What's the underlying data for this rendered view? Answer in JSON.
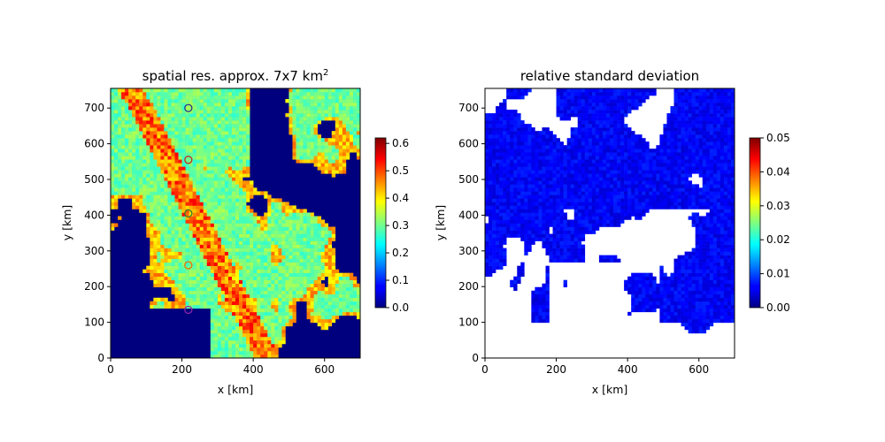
{
  "chart_data": [
    {
      "type": "heatmap",
      "title": "spatial res. approx. 7x7 km",
      "title_superscript": "2",
      "xlabel": "x [km]",
      "ylabel": "y [km]",
      "xlim": [
        0,
        700
      ],
      "ylim": [
        0,
        755
      ],
      "xticks": [
        "0",
        "200",
        "400",
        "600"
      ],
      "yticks": [
        "0",
        "100",
        "200",
        "300",
        "400",
        "500",
        "600",
        "700"
      ],
      "colorbar": {
        "colormap": "jet",
        "range": [
          0.0,
          0.62
        ],
        "ticks": [
          "0.0",
          "0.1",
          "0.2",
          "0.3",
          "0.4",
          "0.5",
          "0.6"
        ]
      },
      "markers": [
        {
          "x": 218,
          "y": 700,
          "color": "#283593"
        },
        {
          "x": 218,
          "y": 555,
          "color": "#c62828"
        },
        {
          "x": 218,
          "y": 405,
          "color": "#2e7d32"
        },
        {
          "x": 218,
          "y": 260,
          "color": "#ef6c00"
        },
        {
          "x": 218,
          "y": 135,
          "color": "#8e24aa"
        }
      ]
    },
    {
      "type": "heatmap",
      "title": "relative standard deviation",
      "xlabel": "x [km]",
      "ylabel": "y [km]",
      "xlim": [
        0,
        700
      ],
      "ylim": [
        0,
        755
      ],
      "xticks": [
        "0",
        "200",
        "400",
        "600"
      ],
      "yticks": [
        "0",
        "100",
        "200",
        "300",
        "400",
        "500",
        "600",
        "700"
      ],
      "colorbar": {
        "colormap": "jet",
        "range": [
          0.0,
          0.05
        ],
        "ticks": [
          "0.00",
          "0.01",
          "0.02",
          "0.03",
          "0.04",
          "0.05"
        ]
      }
    }
  ]
}
